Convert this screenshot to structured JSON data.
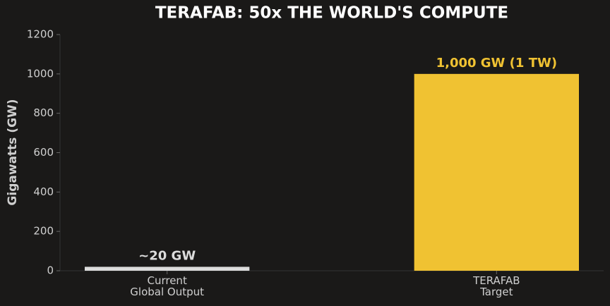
{
  "chart_data": {
    "type": "bar",
    "title": "TERAFAB: 50x THE WORLD'S COMPUTE",
    "ylabel": "Gigawatts (GW)",
    "categories": [
      "Current\nGlobal Output",
      "TERAFAB\nTarget"
    ],
    "values": [
      20,
      1000
    ],
    "value_labels": [
      "~20 GW",
      "1,000 GW (1 TW)"
    ],
    "colors": [
      "#dcdcdc",
      "#f0c232"
    ],
    "ylim": [
      0,
      1200
    ],
    "yticks": [
      0,
      200,
      400,
      600,
      800,
      1000,
      1200
    ],
    "grid": false
  }
}
